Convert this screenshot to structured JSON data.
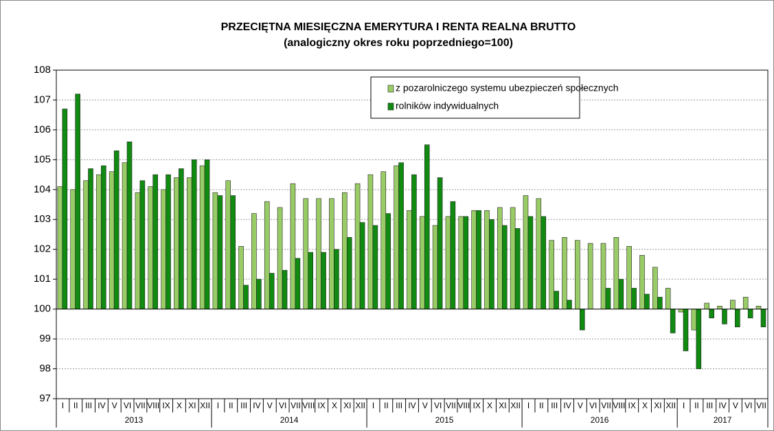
{
  "chart_data": {
    "type": "bar",
    "title": "PRZECIĘTNA MIESIĘCZNA EMERYTURA I RENTA REALNA BRUTTO",
    "subtitle": "(analogiczny okres roku poprzedniego=100)",
    "categories": [
      "I",
      "II",
      "III",
      "IV",
      "V",
      "VI",
      "VII",
      "VIII",
      "IX",
      "X",
      "XI",
      "XII",
      "I",
      "II",
      "III",
      "IV",
      "V",
      "VI",
      "VII",
      "VIII",
      "IX",
      "X",
      "XI",
      "XII",
      "I",
      "II",
      "III",
      "IV",
      "V",
      "VI",
      "VII",
      "VIII",
      "IX",
      "X",
      "XI",
      "XII",
      "I",
      "II",
      "III",
      "IV",
      "V",
      "VI",
      "VII",
      "VIII",
      "IX",
      "X",
      "XI",
      "XII",
      "I",
      "II",
      "III",
      "IV",
      "V",
      "VI",
      "VII"
    ],
    "groups": [
      "2013",
      "2014",
      "2015",
      "2016",
      "2017"
    ],
    "baseline": 100,
    "series": [
      {
        "name": "z pozarolniczego systemu ubezpieczeń społecznych",
        "color": "#99cc66",
        "values": [
          104.1,
          104.0,
          104.3,
          104.5,
          104.6,
          104.9,
          103.9,
          104.1,
          104.0,
          104.4,
          104.4,
          104.8,
          103.9,
          104.3,
          102.1,
          103.2,
          103.6,
          103.4,
          104.2,
          103.7,
          103.7,
          103.7,
          103.9,
          104.2,
          104.5,
          104.6,
          104.8,
          103.3,
          103.1,
          102.8,
          103.1,
          103.1,
          103.3,
          103.3,
          103.4,
          103.4,
          103.8,
          103.7,
          102.3,
          102.4,
          102.3,
          102.2,
          102.2,
          102.4,
          102.1,
          101.8,
          101.4,
          100.7,
          99.9,
          99.3,
          100.2,
          100.1,
          100.3,
          100.4,
          100.1
        ]
      },
      {
        "name": "rolników indywidualnych",
        "color": "#108a10",
        "values": [
          106.7,
          107.2,
          104.7,
          104.8,
          105.3,
          105.6,
          104.3,
          104.5,
          104.5,
          104.7,
          105.0,
          105.0,
          103.8,
          103.8,
          100.8,
          101.0,
          101.2,
          101.3,
          101.7,
          101.9,
          101.9,
          102.0,
          102.4,
          102.9,
          102.8,
          103.2,
          104.9,
          104.5,
          105.5,
          104.4,
          103.6,
          103.1,
          103.3,
          103.0,
          102.8,
          102.7,
          103.1,
          103.1,
          100.6,
          100.3,
          99.3,
          100.0,
          100.7,
          101.0,
          100.7,
          100.5,
          100.4,
          99.2,
          98.6,
          98.0,
          99.7,
          99.5,
          99.4,
          99.7,
          99.4
        ]
      }
    ],
    "ylim": [
      97,
      108
    ],
    "yticks": [
      97,
      98,
      99,
      100,
      101,
      102,
      103,
      104,
      105,
      106,
      107,
      108
    ],
    "grid": true,
    "legend": "top-right"
  }
}
